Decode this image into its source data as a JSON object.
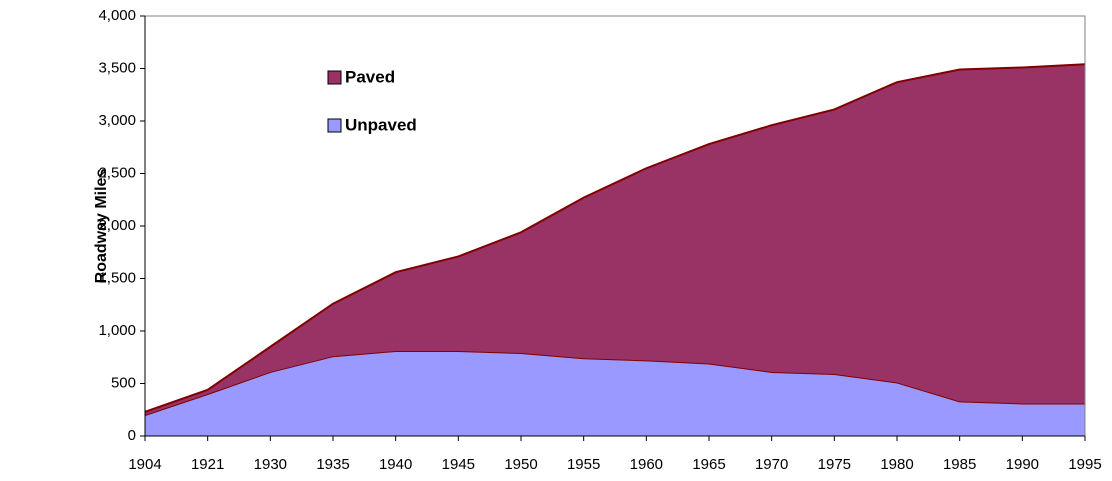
{
  "chart_data": {
    "type": "stacked_area",
    "y_label": "Roadway Miles",
    "categories": [
      "1904",
      "1921",
      "1930",
      "1935",
      "1940",
      "1945",
      "1950",
      "1955",
      "1960",
      "1965",
      "1970",
      "1975",
      "1980",
      "1985",
      "1990",
      "1995"
    ],
    "series": [
      {
        "name": "Paved",
        "color": "#993366",
        "values": [
          30,
          40,
          240,
          500,
          750,
          900,
          1150,
          1530,
          1830,
          2090,
          2350,
          2520,
          2860,
          3160,
          3200,
          3230
        ]
      },
      {
        "name": "Unpaved",
        "color": "#9999ff",
        "values": [
          200,
          400,
          610,
          760,
          810,
          810,
          790,
          740,
          720,
          690,
          610,
          590,
          510,
          330,
          310,
          310
        ]
      }
    ],
    "ylim": [
      0,
      4000
    ],
    "yticks": [
      0,
      500,
      {
        "value": 1000,
        "label": "1,000"
      },
      {
        "value": 1500,
        "label": "1,500"
      },
      {
        "value": 2000,
        "label": "2,000"
      },
      {
        "value": 2500,
        "label": "2,500"
      },
      {
        "value": 3000,
        "label": "3,000"
      },
      {
        "value": 3500,
        "label": "3,500"
      },
      {
        "value": 4000,
        "label": "4,000"
      }
    ],
    "legend": "upper left"
  }
}
